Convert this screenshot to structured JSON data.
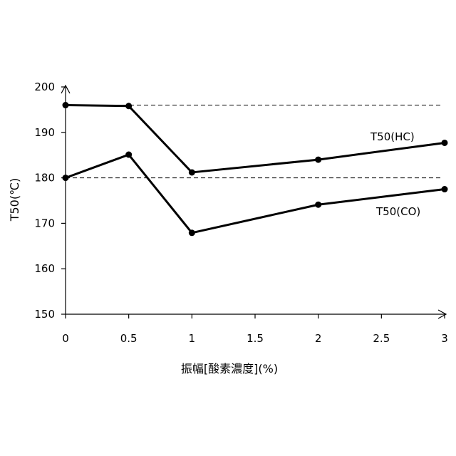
{
  "chart_data": {
    "type": "line",
    "title": "",
    "xlabel": "振幅[酸素濃度](%)",
    "ylabel": "T50(℃)",
    "xlim": [
      0,
      3
    ],
    "ylim": [
      150,
      200
    ],
    "xticks": [
      "0",
      "0.5",
      "1",
      "1.5",
      "2",
      "2.5",
      "3"
    ],
    "yticks": [
      "150",
      "160",
      "170",
      "180",
      "190",
      "200"
    ],
    "grid": false,
    "legend": "none",
    "reference_lines": [
      196,
      180
    ],
    "series": [
      {
        "name": "T50(HC)",
        "color": "#000000",
        "points": [
          [
            0,
            196
          ],
          [
            0.5,
            195.8
          ],
          [
            1,
            181.2
          ],
          [
            2,
            184
          ],
          [
            3,
            187.7
          ]
        ]
      },
      {
        "name": "T50(CO)",
        "color": "#000000",
        "points": [
          [
            0,
            180
          ],
          [
            0.5,
            185.1
          ],
          [
            1,
            167.9
          ],
          [
            2,
            174.1
          ],
          [
            3,
            177.5
          ]
        ]
      }
    ]
  }
}
